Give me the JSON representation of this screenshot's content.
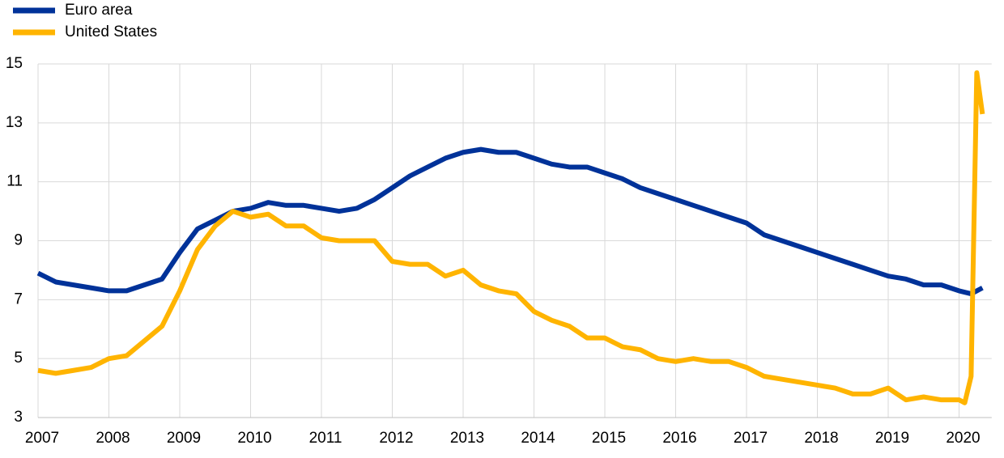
{
  "chart_data": {
    "type": "line",
    "xlim": [
      2007,
      2020.46
    ],
    "xticks": [
      2007,
      2008,
      2009,
      2010,
      2011,
      2012,
      2013,
      2014,
      2015,
      2016,
      2017,
      2018,
      2019,
      2020
    ],
    "ylim": [
      3,
      15
    ],
    "yticks": [
      3,
      5,
      7,
      9,
      11,
      13,
      15
    ],
    "grid": true,
    "legend": "top-left",
    "series": [
      {
        "name": "Euro area",
        "color": "#003299",
        "x": [
          2007,
          2007.25,
          2007.5,
          2007.75,
          2008,
          2008.25,
          2008.5,
          2008.75,
          2009,
          2009.25,
          2009.5,
          2009.75,
          2010,
          2010.25,
          2010.5,
          2010.75,
          2011,
          2011.25,
          2011.5,
          2011.75,
          2012,
          2012.25,
          2012.5,
          2012.75,
          2013,
          2013.25,
          2013.5,
          2013.75,
          2014,
          2014.25,
          2014.5,
          2014.75,
          2015,
          2015.25,
          2015.5,
          2015.75,
          2016,
          2016.25,
          2016.5,
          2016.75,
          2017,
          2017.25,
          2017.5,
          2017.75,
          2018,
          2018.25,
          2018.5,
          2018.75,
          2019,
          2019.25,
          2019.5,
          2019.75,
          2020,
          2020.17,
          2020.25,
          2020.33
        ],
        "values": [
          7.9,
          7.6,
          7.5,
          7.4,
          7.3,
          7.3,
          7.5,
          7.7,
          8.6,
          9.4,
          9.7,
          10.0,
          10.1,
          10.3,
          10.2,
          10.2,
          10.1,
          10.0,
          10.1,
          10.4,
          10.8,
          11.2,
          11.5,
          11.8,
          12.0,
          12.1,
          12.0,
          12.0,
          11.8,
          11.6,
          11.5,
          11.5,
          11.3,
          11.1,
          10.8,
          10.6,
          10.4,
          10.2,
          10.0,
          9.8,
          9.6,
          9.2,
          9.0,
          8.8,
          8.6,
          8.4,
          8.2,
          8.0,
          7.8,
          7.7,
          7.5,
          7.5,
          7.3,
          7.2,
          7.3,
          7.4
        ]
      },
      {
        "name": "United States",
        "color": "#ffb400",
        "x": [
          2007,
          2007.25,
          2007.5,
          2007.75,
          2008,
          2008.25,
          2008.5,
          2008.75,
          2009,
          2009.25,
          2009.5,
          2009.75,
          2010,
          2010.25,
          2010.5,
          2010.75,
          2011,
          2011.25,
          2011.5,
          2011.75,
          2012,
          2012.25,
          2012.5,
          2012.75,
          2013,
          2013.25,
          2013.5,
          2013.75,
          2014,
          2014.25,
          2014.5,
          2014.75,
          2015,
          2015.25,
          2015.5,
          2015.75,
          2016,
          2016.25,
          2016.5,
          2016.75,
          2017,
          2017.25,
          2017.5,
          2017.75,
          2018,
          2018.25,
          2018.5,
          2018.75,
          2019,
          2019.25,
          2019.5,
          2019.75,
          2020,
          2020.08,
          2020.17,
          2020.25,
          2020.33
        ],
        "values": [
          4.6,
          4.5,
          4.6,
          4.7,
          5.0,
          5.1,
          5.6,
          6.1,
          7.3,
          8.7,
          9.5,
          10.0,
          9.8,
          9.9,
          9.5,
          9.5,
          9.1,
          9.0,
          9.0,
          9.0,
          8.3,
          8.2,
          8.2,
          7.8,
          8.0,
          7.5,
          7.3,
          7.2,
          6.6,
          6.3,
          6.1,
          5.7,
          5.7,
          5.4,
          5.3,
          5.0,
          4.9,
          5.0,
          4.9,
          4.9,
          4.7,
          4.4,
          4.3,
          4.2,
          4.1,
          4.0,
          3.8,
          3.8,
          4.0,
          3.6,
          3.7,
          3.6,
          3.6,
          3.5,
          4.4,
          14.7,
          13.3
        ]
      }
    ]
  }
}
